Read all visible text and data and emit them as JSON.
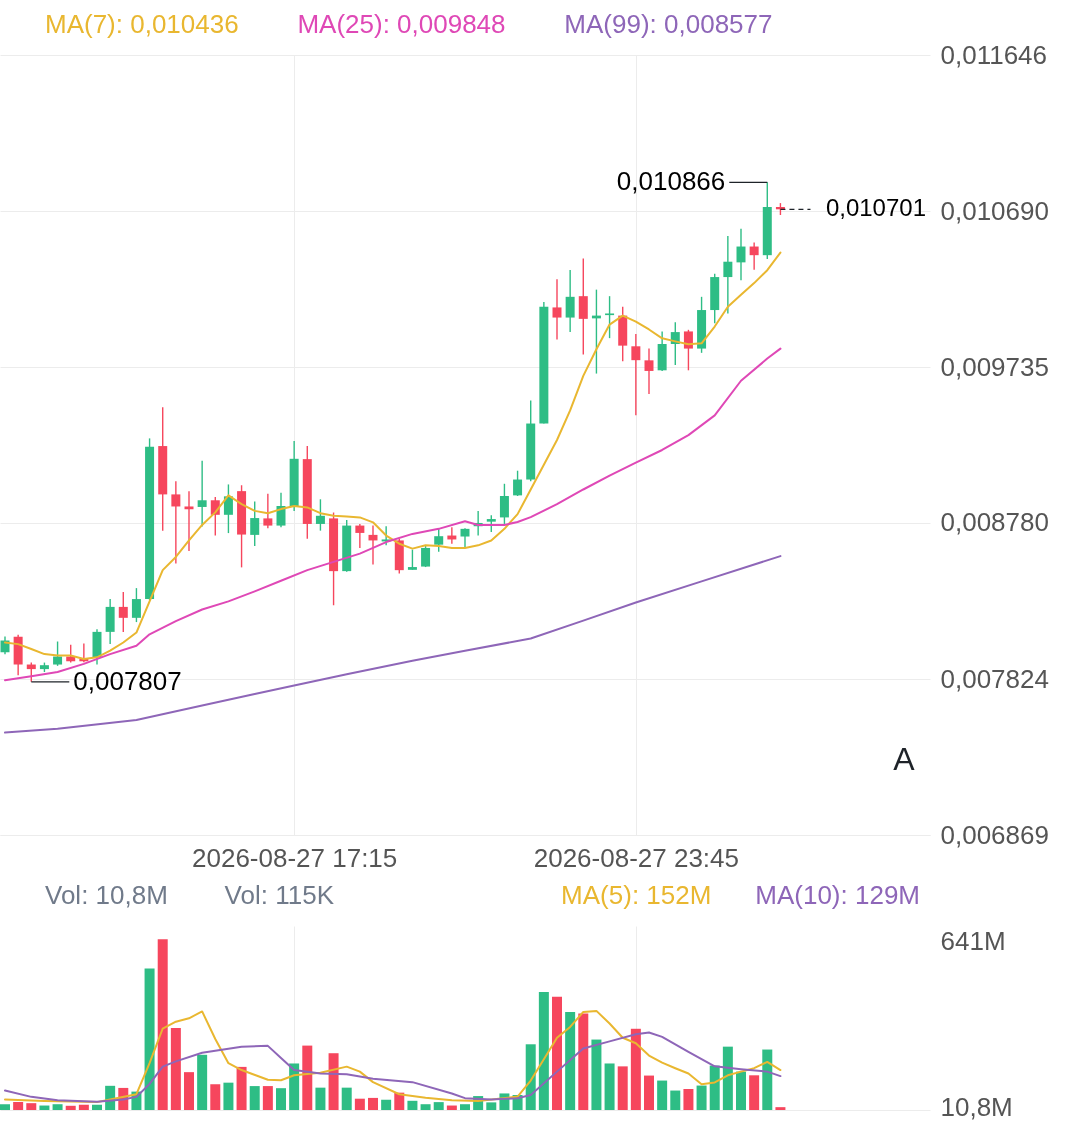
{
  "chart_data": [
    {
      "type": "candlestick",
      "x": [
        "2026-08-27T11:45",
        "2026-08-27T12:00",
        "2026-08-27T12:15",
        "2026-08-27T12:30",
        "2026-08-27T12:45",
        "2026-08-27T13:00",
        "2026-08-27T13:15",
        "2026-08-27T13:30",
        "2026-08-27T13:45",
        "2026-08-27T14:00",
        "2026-08-27T14:15",
        "2026-08-27T14:30",
        "2026-08-27T14:45",
        "2026-08-27T15:00",
        "2026-08-27T15:15",
        "2026-08-27T15:30",
        "2026-08-27T15:45",
        "2026-08-27T16:00",
        "2026-08-27T16:15",
        "2026-08-27T16:30",
        "2026-08-27T16:45",
        "2026-08-27T17:00",
        "2026-08-27T17:15",
        "2026-08-27T17:30",
        "2026-08-27T17:45",
        "2026-08-27T18:00",
        "2026-08-27T18:15",
        "2026-08-27T18:30",
        "2026-08-27T18:45",
        "2026-08-27T19:00",
        "2026-08-27T19:15",
        "2026-08-27T19:30",
        "2026-08-27T19:45",
        "2026-08-27T20:00",
        "2026-08-27T20:15",
        "2026-08-27T20:30",
        "2026-08-27T20:45",
        "2026-08-27T21:00",
        "2026-08-27T21:15",
        "2026-08-27T21:30",
        "2026-08-27T21:45",
        "2026-08-27T22:00",
        "2026-08-27T22:15",
        "2026-08-27T22:30",
        "2026-08-27T22:45",
        "2026-08-27T23:00",
        "2026-08-27T23:15",
        "2026-08-27T23:30",
        "2026-08-27T23:45",
        "2026-08-28T00:00",
        "2026-08-28T00:15",
        "2026-08-28T00:30",
        "2026-08-28T00:45",
        "2026-08-28T01:00",
        "2026-08-28T01:15",
        "2026-08-28T01:30",
        "2026-08-28T01:45",
        "2026-08-28T02:00",
        "2026-08-28T02:15",
        "2026-08-28T02:30"
      ],
      "ohlc": [
        [
          0.007988,
          0.008084,
          0.007976,
          0.00806
        ],
        [
          0.008083,
          0.008095,
          0.007847,
          0.007913
        ],
        [
          0.007913,
          0.007925,
          0.007807,
          0.007885
        ],
        [
          0.007885,
          0.007925,
          0.007867,
          0.007909
        ],
        [
          0.007913,
          0.008054,
          0.007905,
          0.007962
        ],
        [
          0.007962,
          0.008034,
          0.007925,
          0.007933
        ],
        [
          0.007947,
          0.008042,
          0.007927,
          0.007933
        ],
        [
          0.007957,
          0.008129,
          0.007913,
          0.008113
        ],
        [
          0.008113,
          0.008314,
          0.008038,
          0.008266
        ],
        [
          0.008266,
          0.008357,
          0.008113,
          0.008199
        ],
        [
          0.008199,
          0.008381,
          0.008173,
          0.008314
        ],
        [
          0.008314,
          0.009298,
          0.008308,
          0.009247
        ],
        [
          0.009251,
          0.009489,
          0.008733,
          0.008955
        ],
        [
          0.008955,
          0.009036,
          0.008532,
          0.008881
        ],
        [
          0.008881,
          0.008975,
          0.008609,
          0.008864
        ],
        [
          0.008878,
          0.009161,
          0.008758,
          0.008919
        ],
        [
          0.008919,
          0.008939,
          0.008703,
          0.00883
        ],
        [
          0.00883,
          0.009016,
          0.008718,
          0.008943
        ],
        [
          0.008975,
          0.009011,
          0.008508,
          0.008709
        ],
        [
          0.008707,
          0.008911,
          0.008639,
          0.00881
        ],
        [
          0.008808,
          0.008959,
          0.008748,
          0.008764
        ],
        [
          0.008764,
          0.008965,
          0.008754,
          0.008884
        ],
        [
          0.008884,
          0.009282,
          0.008854,
          0.009173
        ],
        [
          0.009171,
          0.009251,
          0.008683,
          0.008774
        ],
        [
          0.008774,
          0.008925,
          0.008733,
          0.008824
        ],
        [
          0.008808,
          0.008844,
          0.008276,
          0.008485
        ],
        [
          0.008485,
          0.008798,
          0.008482,
          0.008764
        ],
        [
          0.008764,
          0.008774,
          0.008627,
          0.008719
        ],
        [
          0.008707,
          0.008764,
          0.008526,
          0.008673
        ],
        [
          0.008667,
          0.00876,
          0.008643,
          0.008679
        ],
        [
          0.008673,
          0.008683,
          0.008471,
          0.008491
        ],
        [
          0.008493,
          0.008617,
          0.008493,
          0.00851
        ],
        [
          0.008513,
          0.008643,
          0.00851,
          0.008627
        ],
        [
          0.008647,
          0.008748,
          0.008603,
          0.008699
        ],
        [
          0.008703,
          0.008754,
          0.008653,
          0.008679
        ],
        [
          0.008697,
          0.008748,
          0.008627,
          0.008744
        ],
        [
          0.00876,
          0.008854,
          0.008703,
          0.00878
        ],
        [
          0.008788,
          0.008828,
          0.008724,
          0.008804
        ],
        [
          0.008814,
          0.00902,
          0.008774,
          0.008945
        ],
        [
          0.008949,
          0.0091,
          0.008945,
          0.009046
        ],
        [
          0.009046,
          0.00953,
          0.009036,
          0.009389
        ],
        [
          0.009389,
          0.010134,
          0.009389,
          0.010104
        ],
        [
          0.0101,
          0.010272,
          0.009903,
          0.010038
        ],
        [
          0.010038,
          0.01033,
          0.009949,
          0.010165
        ],
        [
          0.010169,
          0.0104,
          0.009812,
          0.01003
        ],
        [
          0.010033,
          0.010209,
          0.009695,
          0.01005
        ],
        [
          0.010053,
          0.010169,
          0.009912,
          0.010063
        ],
        [
          0.01005,
          0.010104,
          0.009771,
          0.009866
        ],
        [
          0.009862,
          0.009937,
          0.009439,
          0.009777
        ],
        [
          0.009776,
          0.009848,
          0.00957,
          0.009711
        ],
        [
          0.009715,
          0.009953,
          0.009711,
          0.009876
        ],
        [
          0.009876,
          0.010009,
          0.009747,
          0.009949
        ],
        [
          0.009953,
          0.009963,
          0.009715,
          0.009848
        ],
        [
          0.009848,
          0.010165,
          0.009822,
          0.010084
        ],
        [
          0.010084,
          0.010306,
          0.010003,
          0.010286
        ],
        [
          0.010286,
          0.010538,
          0.010063,
          0.01038
        ],
        [
          0.010376,
          0.010582,
          0.010266,
          0.010473
        ],
        [
          0.010473,
          0.010497,
          0.010331,
          0.01042
        ],
        [
          0.01042,
          0.010866,
          0.010396,
          0.010715
        ],
        [
          0.010715,
          0.010739,
          0.010666,
          0.010701
        ]
      ],
      "colors": [
        "#2ebd85",
        "#f6465d",
        "#f6465d",
        "#2ebd85",
        "#2ebd85",
        "#f6465d",
        "#f6465d",
        "#2ebd85",
        "#2ebd85",
        "#f6465d",
        "#2ebd85",
        "#2ebd85",
        "#f6465d",
        "#f6465d",
        "#f6465d",
        "#2ebd85",
        "#f6465d",
        "#2ebd85",
        "#f6465d",
        "#2ebd85",
        "#f6465d",
        "#2ebd85",
        "#2ebd85",
        "#f6465d",
        "#2ebd85",
        "#f6465d",
        "#2ebd85",
        "#f6465d",
        "#f6465d",
        "#2ebd85",
        "#f6465d",
        "#2ebd85",
        "#2ebd85",
        "#2ebd85",
        "#f6465d",
        "#2ebd85",
        "#2ebd85",
        "#2ebd85",
        "#2ebd85",
        "#2ebd85",
        "#2ebd85",
        "#2ebd85",
        "#f6465d",
        "#2ebd85",
        "#f6465d",
        "#2ebd85",
        "#2ebd85",
        "#f6465d",
        "#f6465d",
        "#f6465d",
        "#2ebd85",
        "#2ebd85",
        "#f6465d",
        "#2ebd85",
        "#2ebd85",
        "#2ebd85",
        "#2ebd85",
        "#f6465d",
        "#2ebd85",
        "#f6465d"
      ],
      "series": [
        {
          "type": "line",
          "name": "MA(7): 0,010436",
          "color": "#e9b730",
          "values": [
            0.008048,
            0.008038,
            0.008008,
            0.007977,
            0.007968,
            0.007968,
            0.007947,
            0.007957,
            0.007998,
            0.008048,
            0.008109,
            0.0083,
            0.008491,
            0.008572,
            0.008673,
            0.008768,
            0.008845,
            0.008949,
            0.008895,
            0.008854,
            0.00884,
            0.008865,
            0.008884,
            0.008875,
            0.00884,
            0.008824,
            0.00882,
            0.008814,
            0.008784,
            0.008703,
            0.008653,
            0.008623,
            0.008643,
            0.008639,
            0.008627,
            0.008627,
            0.008643,
            0.008673,
            0.008744,
            0.008834,
            0.008985,
            0.009137,
            0.009288,
            0.009469,
            0.009681,
            0.009844,
            0.009995,
            0.01005,
            0.010013,
            0.009965,
            0.009911,
            0.009892,
            0.009874,
            0.00988,
            0.009983,
            0.010104,
            0.010177,
            0.010249,
            0.010328,
            0.010436
          ]
        },
        {
          "type": "line",
          "name": "MA(25): 0,009848",
          "color": "#df48b6",
          "x": [
            "2026-08-27T11:45",
            "2026-08-27T12:15",
            "2026-08-27T12:45",
            "2026-08-27T13:15",
            "2026-08-27T13:45",
            "2026-08-27T14:15",
            "2026-08-27T14:30",
            "2026-08-27T15:00",
            "2026-08-27T15:30",
            "2026-08-27T16:00",
            "2026-08-27T16:30",
            "2026-08-27T17:00",
            "2026-08-27T17:30",
            "2026-08-27T18:00",
            "2026-08-27T18:30",
            "2026-08-27T19:00",
            "2026-08-27T19:30",
            "2026-08-27T20:00",
            "2026-08-27T20:30",
            "2026-08-27T20:45",
            "2026-08-27T21:15",
            "2026-08-27T21:30",
            "2026-08-27T21:45",
            "2026-08-27T22:15",
            "2026-08-27T22:45",
            "2026-08-27T23:15",
            "2026-08-27T23:45",
            "2026-08-28T00:15",
            "2026-08-28T00:45",
            "2026-08-28T01:15",
            "2026-08-28T01:45",
            "2026-08-28T02:15",
            "2026-08-28T02:30"
          ],
          "values": [
            0.007817,
            0.007841,
            0.007867,
            0.007917,
            0.007977,
            0.008028,
            0.008098,
            0.008179,
            0.00825,
            0.0083,
            0.008361,
            0.008426,
            0.008491,
            0.008542,
            0.008592,
            0.008663,
            0.008713,
            0.008744,
            0.00879,
            0.008768,
            0.008768,
            0.008786,
            0.008816,
            0.008895,
            0.008985,
            0.00907,
            0.009149,
            0.009227,
            0.009318,
            0.009439,
            0.009651,
            0.009787,
            0.009848
          ]
        },
        {
          "type": "line",
          "name": "MA(99): 0,008577",
          "color": "#8e66b8",
          "x": [
            "2026-08-27T11:45",
            "2026-08-27T12:45",
            "2026-08-27T14:15",
            "2026-08-27T15:30",
            "2026-08-27T16:30",
            "2026-08-27T17:15",
            "2026-08-27T18:15",
            "2026-08-27T19:30",
            "2026-08-27T20:30",
            "2026-08-27T21:45",
            "2026-08-27T22:45",
            "2026-08-27T23:45",
            "2026-08-28T01:00",
            "2026-08-28T02:30"
          ],
          "values": [
            0.007496,
            0.007519,
            0.007573,
            0.007662,
            0.007733,
            0.007784,
            0.007853,
            0.007936,
            0.007998,
            0.008072,
            0.008182,
            0.008293,
            0.008422,
            0.008577
          ]
        }
      ],
      "xlim": [
        "2026-08-27T11:45",
        "2026-08-28T05:15"
      ],
      "xticks": [
        {
          "value": "2026-08-27T17:15",
          "label": "2026-08-27 17:15"
        },
        {
          "value": "2026-08-27T23:45",
          "label": "2026-08-27 23:45"
        }
      ],
      "ylim": [
        0.006869,
        0.011646
      ],
      "yticks": [
        {
          "value": 0.006869,
          "label": "0,006869"
        },
        {
          "value": 0.007824,
          "label": "0,007824"
        },
        {
          "value": 0.00878,
          "label": "0,008780"
        },
        {
          "value": 0.009735,
          "label": "0,009735"
        },
        {
          "value": 0.01069,
          "label": "0,010690"
        },
        {
          "value": 0.011646,
          "label": "0,011646"
        }
      ],
      "grid": true,
      "legend": "top left",
      "annotations": [
        {
          "text": "0,010866",
          "x": "2026-08-28T02:15",
          "y": 0.010866
        },
        {
          "text": "0,007807",
          "x": "2026-08-27T12:15",
          "y": 0.007807
        },
        "A"
      ],
      "ref_lines": [
        {
          "axis": "y",
          "value": 0.010701,
          "label": "0,010701",
          "line_style": "dashed",
          "color": "#1e2329"
        }
      ]
    },
    {
      "type": "bar",
      "title": "Vol: 10,8M",
      "subtitle": "Vol: 115K",
      "x": [
        "2026-08-27T11:45",
        "2026-08-27T12:00",
        "2026-08-27T12:15",
        "2026-08-27T12:30",
        "2026-08-27T12:45",
        "2026-08-27T13:00",
        "2026-08-27T13:15",
        "2026-08-27T13:30",
        "2026-08-27T13:45",
        "2026-08-27T14:00",
        "2026-08-27T14:15",
        "2026-08-27T14:30",
        "2026-08-27T14:45",
        "2026-08-27T15:00",
        "2026-08-27T15:15",
        "2026-08-27T15:30",
        "2026-08-27T15:45",
        "2026-08-27T16:00",
        "2026-08-27T16:15",
        "2026-08-27T16:30",
        "2026-08-27T16:45",
        "2026-08-27T17:00",
        "2026-08-27T17:15",
        "2026-08-27T17:30",
        "2026-08-27T17:45",
        "2026-08-27T18:00",
        "2026-08-27T18:15",
        "2026-08-27T18:30",
        "2026-08-27T18:45",
        "2026-08-27T19:00",
        "2026-08-27T19:15",
        "2026-08-27T19:30",
        "2026-08-27T19:45",
        "2026-08-27T20:00",
        "2026-08-27T20:15",
        "2026-08-27T20:30",
        "2026-08-27T20:45",
        "2026-08-27T21:00",
        "2026-08-27T21:15",
        "2026-08-27T21:30",
        "2026-08-27T21:45",
        "2026-08-27T22:00",
        "2026-08-27T22:15",
        "2026-08-27T22:30",
        "2026-08-27T22:45",
        "2026-08-27T23:00",
        "2026-08-27T23:15",
        "2026-08-27T23:30",
        "2026-08-27T23:45",
        "2026-08-28T00:00",
        "2026-08-28T00:15",
        "2026-08-28T00:30",
        "2026-08-28T00:45",
        "2026-08-28T01:00",
        "2026-08-28T01:15",
        "2026-08-28T01:30",
        "2026-08-28T01:45",
        "2026-08-28T02:00",
        "2026-08-28T02:15",
        "2026-08-28T02:30"
      ],
      "series": [
        {
          "type": "bar",
          "values": [
            22000000,
            30000000,
            26000000,
            17000000,
            22000000,
            16000000,
            20000000,
            20000000,
            92000000,
            84000000,
            70000000,
            538000000,
            650000000,
            312000000,
            144000000,
            210000000,
            98000000,
            104000000,
            164000000,
            91000000,
            91000000,
            83000000,
            177000000,
            245000000,
            85000000,
            216000000,
            85000000,
            43000000,
            46000000,
            39000000,
            66000000,
            35000000,
            22000000,
            30000000,
            17000000,
            22000000,
            53000000,
            29000000,
            63000000,
            57000000,
            250000000,
            449000000,
            431000000,
            373000000,
            367000000,
            268000000,
            177000000,
            166000000,
            309000000,
            131000000,
            112000000,
            74000000,
            80000000,
            93000000,
            169000000,
            241000000,
            146000000,
            132000000,
            230000000,
            10800000
          ],
          "colors": [
            "#2ebd85",
            "#f6465d",
            "#f6465d",
            "#2ebd85",
            "#2ebd85",
            "#f6465d",
            "#f6465d",
            "#2ebd85",
            "#2ebd85",
            "#f6465d",
            "#2ebd85",
            "#2ebd85",
            "#f6465d",
            "#f6465d",
            "#f6465d",
            "#2ebd85",
            "#f6465d",
            "#2ebd85",
            "#f6465d",
            "#2ebd85",
            "#f6465d",
            "#2ebd85",
            "#2ebd85",
            "#f6465d",
            "#2ebd85",
            "#f6465d",
            "#2ebd85",
            "#f6465d",
            "#f6465d",
            "#2ebd85",
            "#f6465d",
            "#2ebd85",
            "#2ebd85",
            "#2ebd85",
            "#f6465d",
            "#2ebd85",
            "#2ebd85",
            "#2ebd85",
            "#2ebd85",
            "#2ebd85",
            "#2ebd85",
            "#2ebd85",
            "#f6465d",
            "#2ebd85",
            "#f6465d",
            "#2ebd85",
            "#2ebd85",
            "#f6465d",
            "#f6465d",
            "#f6465d",
            "#2ebd85",
            "#2ebd85",
            "#f6465d",
            "#2ebd85",
            "#2ebd85",
            "#2ebd85",
            "#2ebd85",
            "#f6465d",
            "#2ebd85",
            "#f6465d"
          ]
        },
        {
          "type": "line",
          "name": "MA(5): 152M",
          "color": "#e9b730",
          "x": [
            "2026-08-27T11:45",
            "2026-08-27T12:30",
            "2026-08-27T13:30",
            "2026-08-27T13:45",
            "2026-08-27T14:15",
            "2026-08-27T14:30",
            "2026-08-27T14:45",
            "2026-08-27T15:00",
            "2026-08-27T15:15",
            "2026-08-27T15:30",
            "2026-08-27T15:45",
            "2026-08-27T16:00",
            "2026-08-27T16:15",
            "2026-08-27T16:45",
            "2026-08-27T17:00",
            "2026-08-27T17:15",
            "2026-08-27T17:45",
            "2026-08-27T18:15",
            "2026-08-27T18:30",
            "2026-08-27T18:45",
            "2026-08-27T19:15",
            "2026-08-27T19:45",
            "2026-08-27T20:15",
            "2026-08-27T20:45",
            "2026-08-27T21:30",
            "2026-08-27T21:45",
            "2026-08-27T22:00",
            "2026-08-27T22:15",
            "2026-08-27T22:30",
            "2026-08-27T22:45",
            "2026-08-27T23:00",
            "2026-08-27T23:15",
            "2026-08-27T23:30",
            "2026-08-27T23:45",
            "2026-08-28T00:00",
            "2026-08-28T00:15",
            "2026-08-28T00:30",
            "2026-08-28T00:45",
            "2026-08-28T01:00",
            "2026-08-28T01:15",
            "2026-08-28T01:30",
            "2026-08-28T01:45",
            "2026-08-28T02:00",
            "2026-08-28T02:15",
            "2026-08-28T02:30"
          ],
          "values": [
            40000000,
            34000000,
            30000000,
            40000000,
            60000000,
            178000000,
            310000000,
            336000000,
            349000000,
            375000000,
            270000000,
            178000000,
            152000000,
            115000000,
            113000000,
            132000000,
            142000000,
            165000000,
            146000000,
            106000000,
            60000000,
            47000000,
            37000000,
            34000000,
            51000000,
            112000000,
            193000000,
            275000000,
            316000000,
            373000000,
            377000000,
            329000000,
            275000000,
            254000000,
            207000000,
            180000000,
            159000000,
            139000000,
            98000000,
            105000000,
            132000000,
            146000000,
            159000000,
            183000000,
            152000000
          ]
        },
        {
          "type": "line",
          "name": "MA(10): 129M",
          "color": "#8e66b8",
          "x": [
            "2026-08-27T11:45",
            "2026-08-27T12:15",
            "2026-08-27T12:45",
            "2026-08-27T13:30",
            "2026-08-27T14:00",
            "2026-08-27T14:15",
            "2026-08-27T14:30",
            "2026-08-27T14:45",
            "2026-08-27T15:00",
            "2026-08-27T15:30",
            "2026-08-27T16:15",
            "2026-08-27T16:45",
            "2026-08-27T17:00",
            "2026-08-27T17:15",
            "2026-08-27T17:45",
            "2026-08-27T18:15",
            "2026-08-27T18:45",
            "2026-08-27T19:30",
            "2026-08-27T20:15",
            "2026-08-27T20:30",
            "2026-08-27T21:00",
            "2026-08-27T21:30",
            "2026-08-27T21:45",
            "2026-08-27T22:15",
            "2026-08-27T22:45",
            "2026-08-27T23:15",
            "2026-08-27T23:45",
            "2026-08-28T00:00",
            "2026-08-28T00:15",
            "2026-08-28T00:45",
            "2026-08-28T01:15",
            "2026-08-28T01:45",
            "2026-08-28T02:15",
            "2026-08-28T02:30"
          ],
          "values": [
            74000000,
            50000000,
            37000000,
            31000000,
            40000000,
            50000000,
            99000000,
            165000000,
            185000000,
            218000000,
            241000000,
            244000000,
            198000000,
            152000000,
            139000000,
            136000000,
            119000000,
            106000000,
            63000000,
            45000000,
            40000000,
            45000000,
            57000000,
            146000000,
            234000000,
            261000000,
            288000000,
            295000000,
            278000000,
            221000000,
            166000000,
            155000000,
            146000000,
            129000000
          ]
        }
      ],
      "xlim": [
        "2026-08-27T11:45",
        "2026-08-28T05:15"
      ],
      "xticks": [
        {
          "value": "2026-08-27T17:15",
          "label": null
        },
        {
          "value": "2026-08-27T23:45",
          "label": null
        }
      ],
      "ylim": [
        0,
        700000000
      ],
      "yticks": [
        {
          "value": 10800000,
          "label": "10,8M"
        },
        {
          "value": 641000000,
          "label": "641M"
        }
      ],
      "grid": "x",
      "legend": "top right",
      "tick_labels": "y"
    }
  ]
}
